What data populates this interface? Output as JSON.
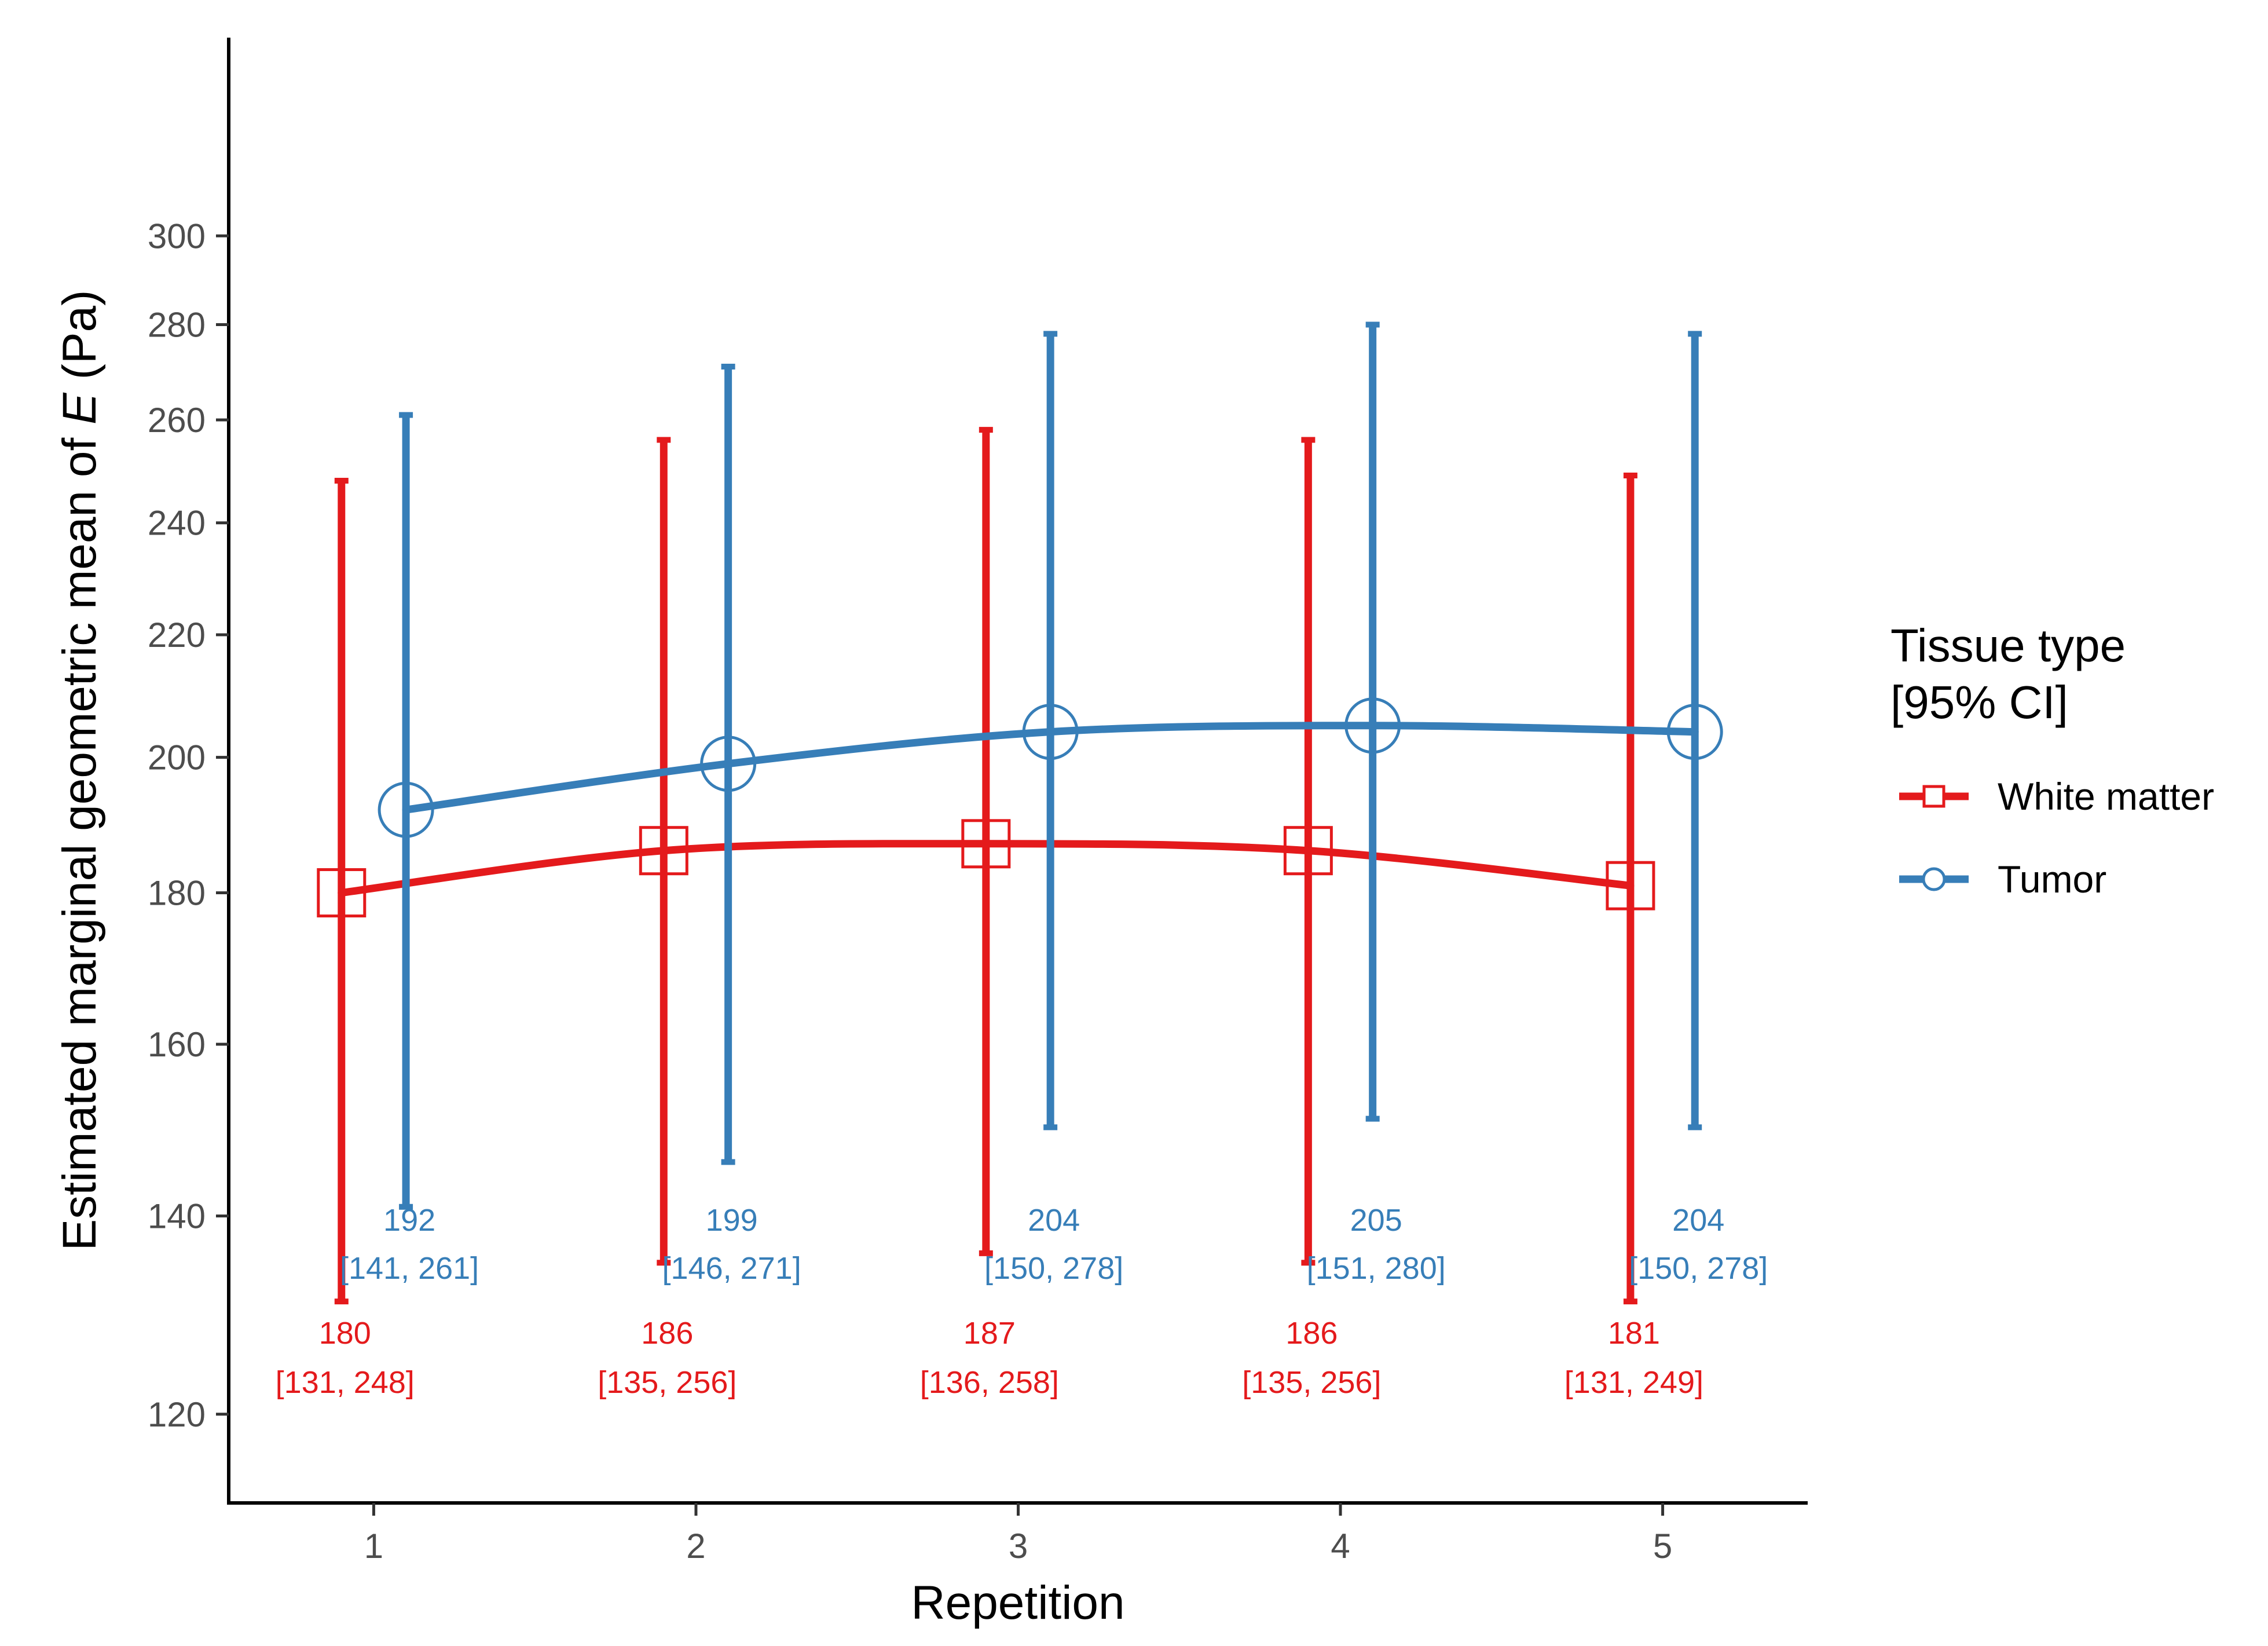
{
  "chart_data": {
    "type": "line",
    "xlabel": "Repetition",
    "ylabel_prefix": "Estimated marginal geometric mean of ",
    "ylabel_var": "E",
    "ylabel_suffix": " (Pa)",
    "xlim": [
      0.55,
      5.45
    ],
    "ylim": [
      112,
      350
    ],
    "y_scale": "log",
    "x": [
      1,
      2,
      3,
      4,
      5
    ],
    "x_tick_labels": [
      "1",
      "2",
      "3",
      "4",
      "5"
    ],
    "y_ticks": [
      120,
      140,
      160,
      180,
      200,
      220,
      240,
      260,
      280,
      300
    ],
    "y_tick_labels": [
      "120",
      "140",
      "160",
      "180",
      "200",
      "220",
      "240",
      "260",
      "280",
      "300"
    ],
    "grid": false,
    "legend": {
      "title_line1": "Tissue type",
      "title_line2": "[95% CI]",
      "position": "right"
    },
    "series": [
      {
        "name": "White matter",
        "color": "#e41a1c",
        "marker": "square",
        "dodge": -0.1,
        "values": [
          180,
          186,
          187,
          186,
          181
        ],
        "lower": [
          131,
          135,
          136,
          135,
          131
        ],
        "upper": [
          248,
          256,
          258,
          256,
          249
        ],
        "value_labels": [
          "180",
          "186",
          "187",
          "186",
          "181"
        ],
        "ci_labels": [
          "[131, 248]",
          "[135, 256]",
          "[136, 258]",
          "[135, 256]",
          "[131, 249]"
        ]
      },
      {
        "name": "Tumor",
        "color": "#377eb8",
        "marker": "circle",
        "dodge": 0.1,
        "values": [
          192,
          199,
          204,
          205,
          204
        ],
        "lower": [
          141,
          146,
          150,
          151,
          150
        ],
        "upper": [
          261,
          271,
          278,
          280,
          278
        ],
        "value_labels": [
          "192",
          "199",
          "204",
          "205",
          "204"
        ],
        "ci_labels": [
          "[141, 261]",
          "[146, 271]",
          "[150, 278]",
          "[151, 280]",
          "[150, 278]"
        ]
      }
    ]
  }
}
